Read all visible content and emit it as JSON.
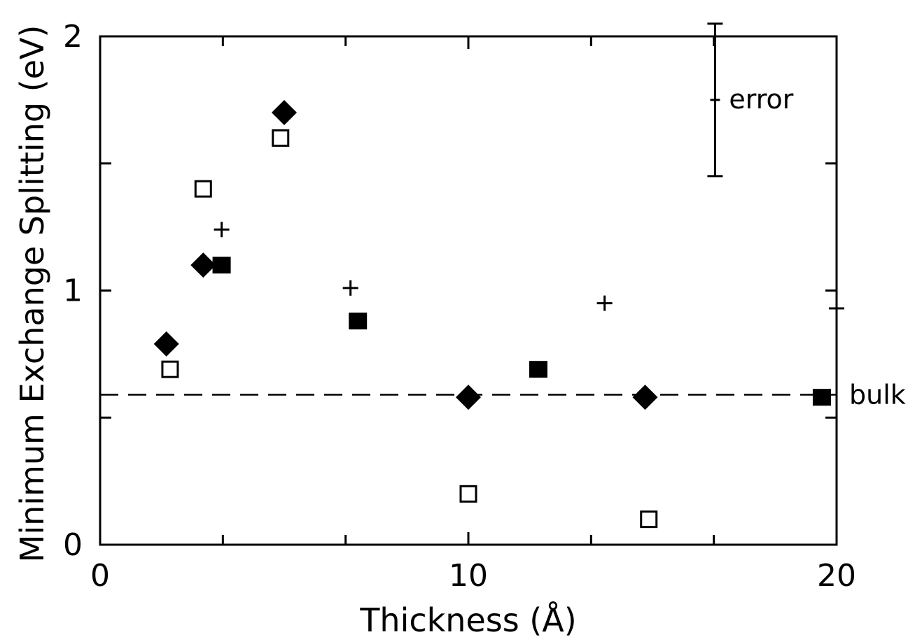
{
  "chart_data": {
    "type": "scatter",
    "title": "",
    "xlabel": "Thickness (Å)",
    "ylabel": "Minimum Exchange Splitting (eV)",
    "xlim": [
      0,
      20
    ],
    "ylim": [
      0,
      2
    ],
    "x_tick_labels": [
      "0",
      "10",
      "20"
    ],
    "y_tick_labels": [
      "0",
      "1",
      "2"
    ],
    "grid": false,
    "series": [
      {
        "marker": "filled-diamond",
        "points": [
          {
            "x": 1.8,
            "y": 0.79
          },
          {
            "x": 2.8,
            "y": 1.1
          },
          {
            "x": 5.0,
            "y": 1.7
          },
          {
            "x": 10.0,
            "y": 0.58
          },
          {
            "x": 14.8,
            "y": 0.58
          }
        ]
      },
      {
        "marker": "open-square",
        "points": [
          {
            "x": 1.9,
            "y": 0.69
          },
          {
            "x": 2.8,
            "y": 1.4
          },
          {
            "x": 4.9,
            "y": 1.6
          },
          {
            "x": 10.0,
            "y": 0.2
          },
          {
            "x": 14.9,
            "y": 0.1
          }
        ]
      },
      {
        "marker": "filled-square",
        "points": [
          {
            "x": 3.3,
            "y": 1.1
          },
          {
            "x": 7.0,
            "y": 0.88
          },
          {
            "x": 11.9,
            "y": 0.69
          },
          {
            "x": 19.6,
            "y": 0.58
          }
        ]
      },
      {
        "marker": "plus",
        "points": [
          {
            "x": 3.3,
            "y": 1.24
          },
          {
            "x": 6.8,
            "y": 1.01
          },
          {
            "x": 13.7,
            "y": 0.95
          },
          {
            "x": 20.0,
            "y": 0.93
          }
        ]
      }
    ],
    "reference_line": {
      "y": 0.59,
      "style": "dashed",
      "label": "bulk"
    },
    "error_bar": {
      "x": 16.7,
      "y": 1.75,
      "half_height": 0.3,
      "label": "error"
    }
  }
}
